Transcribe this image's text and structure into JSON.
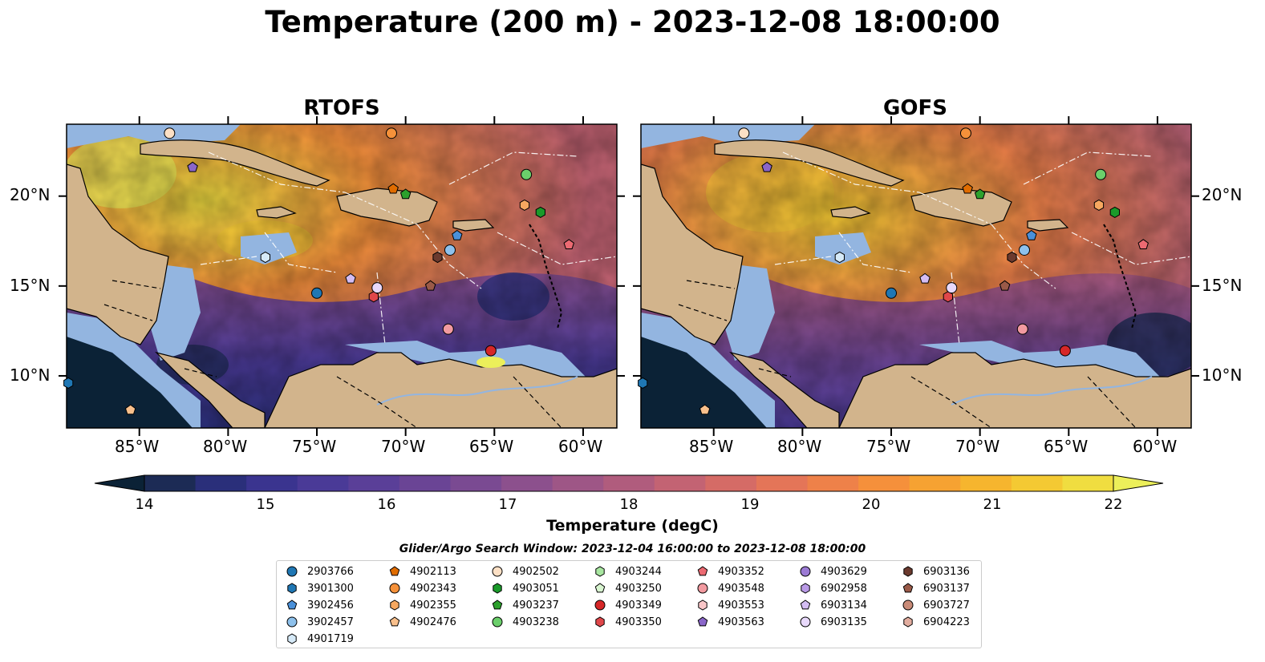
{
  "title": "Temperature (200 m) - 2023-12-08 18:00:00",
  "panels": [
    {
      "title": "RTOFS"
    },
    {
      "title": "GOFS"
    }
  ],
  "lon_ticks": [
    "85°W",
    "80°W",
    "75°W",
    "70°W",
    "65°W",
    "60°W"
  ],
  "lat_ticks": [
    "20°N",
    "15°N",
    "10°N"
  ],
  "colorbar": {
    "label": "Temperature (degC)",
    "ticks": [
      "14",
      "15",
      "16",
      "17",
      "18",
      "19",
      "20",
      "21",
      "22"
    ],
    "colors": [
      "#0b2236",
      "#1c2b55",
      "#2a2f7a",
      "#3a348f",
      "#4a3a97",
      "#5a3f98",
      "#6a4495",
      "#7a4a92",
      "#8c508d",
      "#9e5686",
      "#b05c7d",
      "#c36373",
      "#d56b66",
      "#e47558",
      "#ee8149",
      "#f5903b",
      "#f6a232",
      "#f6b52e",
      "#f4c933",
      "#f0dd40",
      "#ecef5a"
    ]
  },
  "search_window": "Glider/Argo Search Window: 2023-12-04 16:00:00 to 2023-12-08 18:00:00",
  "legend": [
    {
      "id": "2903766",
      "marker": "circle",
      "color": "#1f77b4"
    },
    {
      "id": "3901300",
      "marker": "hexagon",
      "color": "#1f77b4"
    },
    {
      "id": "3902456",
      "marker": "pentagon",
      "color": "#4a90d9"
    },
    {
      "id": "3902457",
      "marker": "circle",
      "color": "#8ec1ec"
    },
    {
      "id": "4901719",
      "marker": "hexagon",
      "color": "#d6eaf8"
    },
    {
      "id": "4902113",
      "marker": "pentagon",
      "color": "#e06c00"
    },
    {
      "id": "4902343",
      "marker": "circle",
      "color": "#f5913a"
    },
    {
      "id": "4902355",
      "marker": "hexagon",
      "color": "#f6a860"
    },
    {
      "id": "4902476",
      "marker": "pentagon",
      "color": "#f9c08c"
    },
    {
      "id": "4902502",
      "marker": "circle",
      "color": "#fde0c5"
    },
    {
      "id": "4903051",
      "marker": "hexagon",
      "color": "#1a9a2a"
    },
    {
      "id": "4903237",
      "marker": "pentagon",
      "color": "#2ca02c"
    },
    {
      "id": "4903238",
      "marker": "circle",
      "color": "#6bcf6b"
    },
    {
      "id": "4903244",
      "marker": "hexagon",
      "color": "#a8e6a0"
    },
    {
      "id": "4903250",
      "marker": "pentagon",
      "color": "#d8f5d0"
    },
    {
      "id": "4903349",
      "marker": "circle",
      "color": "#d62728"
    },
    {
      "id": "4903350",
      "marker": "hexagon",
      "color": "#e0474a"
    },
    {
      "id": "4903352",
      "marker": "pentagon",
      "color": "#ec6a72"
    },
    {
      "id": "4903548",
      "marker": "circle",
      "color": "#f29aa0"
    },
    {
      "id": "4903553",
      "marker": "hexagon",
      "color": "#f9c6c8"
    },
    {
      "id": "4903563",
      "marker": "pentagon",
      "color": "#8a66c9"
    },
    {
      "id": "4903629",
      "marker": "circle",
      "color": "#9b7ad4"
    },
    {
      "id": "6902958",
      "marker": "hexagon",
      "color": "#b99ae6"
    },
    {
      "id": "6903134",
      "marker": "pentagon",
      "color": "#d4bdf3"
    },
    {
      "id": "6903135",
      "marker": "circle",
      "color": "#e8d9fb"
    },
    {
      "id": "6903136",
      "marker": "hexagon",
      "color": "#6b3a2e"
    },
    {
      "id": "6903137",
      "marker": "pentagon",
      "color": "#9a5a48"
    },
    {
      "id": "6903727",
      "marker": "circle",
      "color": "#c98b78"
    },
    {
      "id": "6904223",
      "marker": "hexagon",
      "color": "#e2ad9f"
    }
  ],
  "markers": [
    {
      "id": "2903766",
      "lon": -75.0,
      "lat": 14.6
    },
    {
      "id": "3901300",
      "lon": -89.0,
      "lat": 9.6
    },
    {
      "id": "3902456",
      "lon": -67.1,
      "lat": 17.8
    },
    {
      "id": "3902457",
      "lon": -67.5,
      "lat": 17.0
    },
    {
      "id": "4901719",
      "lon": -77.9,
      "lat": 16.6
    },
    {
      "id": "4902113",
      "lon": -70.7,
      "lat": 20.4
    },
    {
      "id": "4902343",
      "lon": -70.8,
      "lat": 23.5
    },
    {
      "id": "4902355",
      "lon": -63.3,
      "lat": 19.5
    },
    {
      "id": "4902476",
      "lon": -85.5,
      "lat": 8.1
    },
    {
      "id": "4902502",
      "lon": -83.3,
      "lat": 23.5
    },
    {
      "id": "4903051",
      "lon": -62.4,
      "lat": 19.1
    },
    {
      "id": "4903237",
      "lon": -70.0,
      "lat": 20.1
    },
    {
      "id": "4903238",
      "lon": -63.2,
      "lat": 21.2
    },
    {
      "id": "4903349",
      "lon": -65.2,
      "lat": 11.4
    },
    {
      "id": "4903350",
      "lon": -71.8,
      "lat": 14.4
    },
    {
      "id": "4903352",
      "lon": -60.8,
      "lat": 17.3
    },
    {
      "id": "4903548",
      "lon": -67.6,
      "lat": 12.6
    },
    {
      "id": "4903563",
      "lon": -82.0,
      "lat": 21.6
    },
    {
      "id": "6903134",
      "lon": -73.1,
      "lat": 15.4
    },
    {
      "id": "6903135",
      "lon": -71.6,
      "lat": 14.9
    },
    {
      "id": "6903136",
      "lon": -68.2,
      "lat": 16.6
    },
    {
      "id": "6903137",
      "lon": -68.6,
      "lat": 15.0
    }
  ]
}
